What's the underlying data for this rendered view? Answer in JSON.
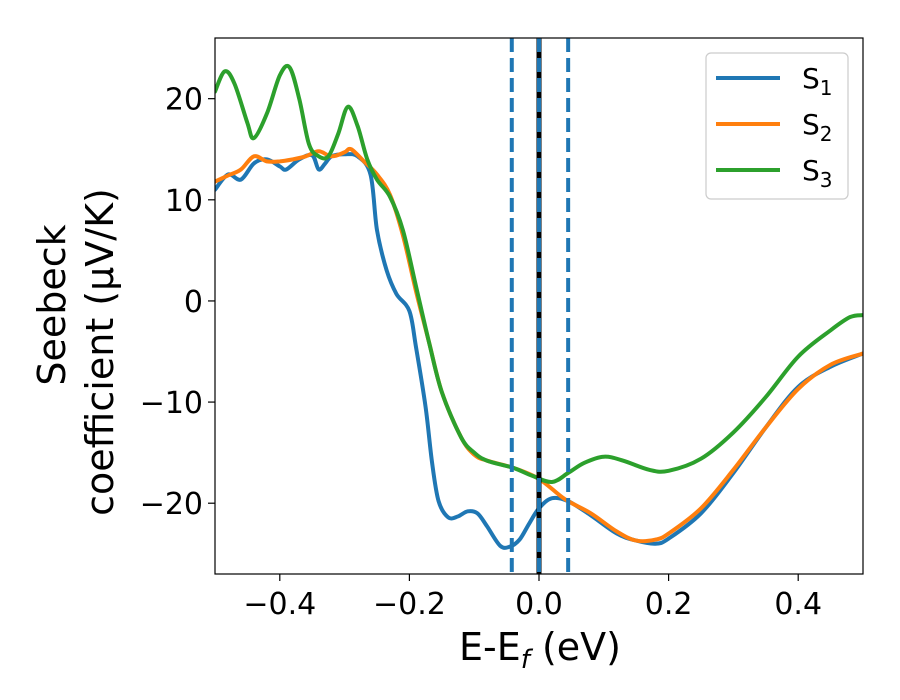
{
  "chart_data": {
    "type": "line",
    "title": "",
    "xlabel": "E-E",
    "xlabel_sub": "f",
    "xlabel_unit": " (eV)",
    "ylabel_line1": "Seebeck",
    "ylabel_line2": "coefficient  (μV/K)",
    "xlim": [
      -0.5,
      0.5
    ],
    "ylim": [
      -27,
      26
    ],
    "xticks": [
      -0.4,
      -0.2,
      0.0,
      0.2,
      0.4
    ],
    "xtick_labels": [
      "−0.4",
      "−0.2",
      "0.0",
      "0.2",
      "0.4"
    ],
    "yticks": [
      20,
      10,
      0,
      -10,
      -20
    ],
    "ytick_labels": [
      "20",
      "10",
      "0",
      "−10",
      "−20"
    ],
    "grid": false,
    "legend_position": "top-right",
    "vlines": [
      {
        "x": 0.0,
        "style": "solid",
        "color": "#000000"
      },
      {
        "x": -0.042,
        "style": "dashed",
        "color": "#1f77b4"
      },
      {
        "x": 0.0,
        "style": "dashed",
        "color": "#1f77b4"
      },
      {
        "x": 0.045,
        "style": "dashed",
        "color": "#1f77b4"
      }
    ],
    "series": [
      {
        "name": "S",
        "sub": "1",
        "color": "#1f77b4",
        "points": [
          [
            -0.5,
            11
          ],
          [
            -0.48,
            12.5
          ],
          [
            -0.46,
            12
          ],
          [
            -0.44,
            13.6
          ],
          [
            -0.42,
            14
          ],
          [
            -0.4,
            13.3
          ],
          [
            -0.39,
            13
          ],
          [
            -0.37,
            14
          ],
          [
            -0.35,
            14.4
          ],
          [
            -0.34,
            13
          ],
          [
            -0.33,
            13.6
          ],
          [
            -0.32,
            14.3
          ],
          [
            -0.3,
            14.5
          ],
          [
            -0.28,
            14.3
          ],
          [
            -0.26,
            12.5
          ],
          [
            -0.25,
            7
          ],
          [
            -0.235,
            3
          ],
          [
            -0.22,
            0.7
          ],
          [
            -0.2,
            -1
          ],
          [
            -0.19,
            -4.5
          ],
          [
            -0.175,
            -10.5
          ],
          [
            -0.165,
            -16
          ],
          [
            -0.155,
            -19.8
          ],
          [
            -0.14,
            -21.4
          ],
          [
            -0.125,
            -21.3
          ],
          [
            -0.11,
            -20.8
          ],
          [
            -0.095,
            -21
          ],
          [
            -0.08,
            -22.3
          ],
          [
            -0.06,
            -24.2
          ],
          [
            -0.045,
            -24.3
          ],
          [
            -0.03,
            -23.6
          ],
          [
            -0.015,
            -22
          ],
          [
            0,
            -20.5
          ],
          [
            0.02,
            -19.5
          ],
          [
            0.045,
            -19.8
          ],
          [
            0.08,
            -21.2
          ],
          [
            0.12,
            -23
          ],
          [
            0.15,
            -23.7
          ],
          [
            0.18,
            -24
          ],
          [
            0.2,
            -23.5
          ],
          [
            0.25,
            -21
          ],
          [
            0.3,
            -17
          ],
          [
            0.35,
            -12.5
          ],
          [
            0.4,
            -8.5
          ],
          [
            0.45,
            -6.5
          ],
          [
            0.5,
            -5.2
          ]
        ]
      },
      {
        "name": "S",
        "sub": "2",
        "color": "#ff7f0e",
        "points": [
          [
            -0.5,
            11.8
          ],
          [
            -0.48,
            12.4
          ],
          [
            -0.46,
            13
          ],
          [
            -0.44,
            14.3
          ],
          [
            -0.42,
            13.8
          ],
          [
            -0.4,
            13.8
          ],
          [
            -0.38,
            14
          ],
          [
            -0.36,
            14.3
          ],
          [
            -0.34,
            14.8
          ],
          [
            -0.32,
            14.3
          ],
          [
            -0.3,
            14.7
          ],
          [
            -0.29,
            15
          ],
          [
            -0.27,
            13.8
          ],
          [
            -0.25,
            12.5
          ],
          [
            -0.23,
            10.5
          ],
          [
            -0.21,
            6.5
          ],
          [
            -0.19,
            1
          ],
          [
            -0.17,
            -4
          ],
          [
            -0.15,
            -9
          ],
          [
            -0.12,
            -13.5
          ],
          [
            -0.1,
            -15.2
          ],
          [
            -0.08,
            -15.8
          ],
          [
            -0.04,
            -16.5
          ],
          [
            0,
            -17.6
          ],
          [
            0.04,
            -19.6
          ],
          [
            0.08,
            -21
          ],
          [
            0.12,
            -22.8
          ],
          [
            0.15,
            -23.7
          ],
          [
            0.18,
            -23.6
          ],
          [
            0.2,
            -23
          ],
          [
            0.25,
            -20.5
          ],
          [
            0.3,
            -16.7
          ],
          [
            0.35,
            -12.5
          ],
          [
            0.4,
            -8.7
          ],
          [
            0.45,
            -6.3
          ],
          [
            0.5,
            -5.2
          ]
        ]
      },
      {
        "name": "S",
        "sub": "3",
        "color": "#2ca02c",
        "points": [
          [
            -0.5,
            20.7
          ],
          [
            -0.485,
            22.7
          ],
          [
            -0.47,
            21.5
          ],
          [
            -0.45,
            17.6
          ],
          [
            -0.44,
            16.1
          ],
          [
            -0.42,
            18.5
          ],
          [
            -0.4,
            22.3
          ],
          [
            -0.385,
            23.1
          ],
          [
            -0.37,
            20
          ],
          [
            -0.355,
            15.5
          ],
          [
            -0.34,
            14.3
          ],
          [
            -0.325,
            14.3
          ],
          [
            -0.31,
            16.5
          ],
          [
            -0.295,
            19.2
          ],
          [
            -0.28,
            17.3
          ],
          [
            -0.265,
            14
          ],
          [
            -0.25,
            12
          ],
          [
            -0.23,
            10.3
          ],
          [
            -0.21,
            7
          ],
          [
            -0.19,
            1.5
          ],
          [
            -0.17,
            -4
          ],
          [
            -0.15,
            -9
          ],
          [
            -0.12,
            -13.5
          ],
          [
            -0.1,
            -15
          ],
          [
            -0.08,
            -15.8
          ],
          [
            -0.04,
            -16.5
          ],
          [
            -0.01,
            -17.3
          ],
          [
            0.02,
            -17.9
          ],
          [
            0.045,
            -17
          ],
          [
            0.07,
            -16
          ],
          [
            0.1,
            -15.4
          ],
          [
            0.13,
            -15.8
          ],
          [
            0.17,
            -16.7
          ],
          [
            0.2,
            -16.8
          ],
          [
            0.25,
            -15.6
          ],
          [
            0.3,
            -13
          ],
          [
            0.35,
            -9.5
          ],
          [
            0.4,
            -5.5
          ],
          [
            0.45,
            -2.9
          ],
          [
            0.48,
            -1.6
          ],
          [
            0.5,
            -1.4
          ]
        ]
      }
    ]
  }
}
